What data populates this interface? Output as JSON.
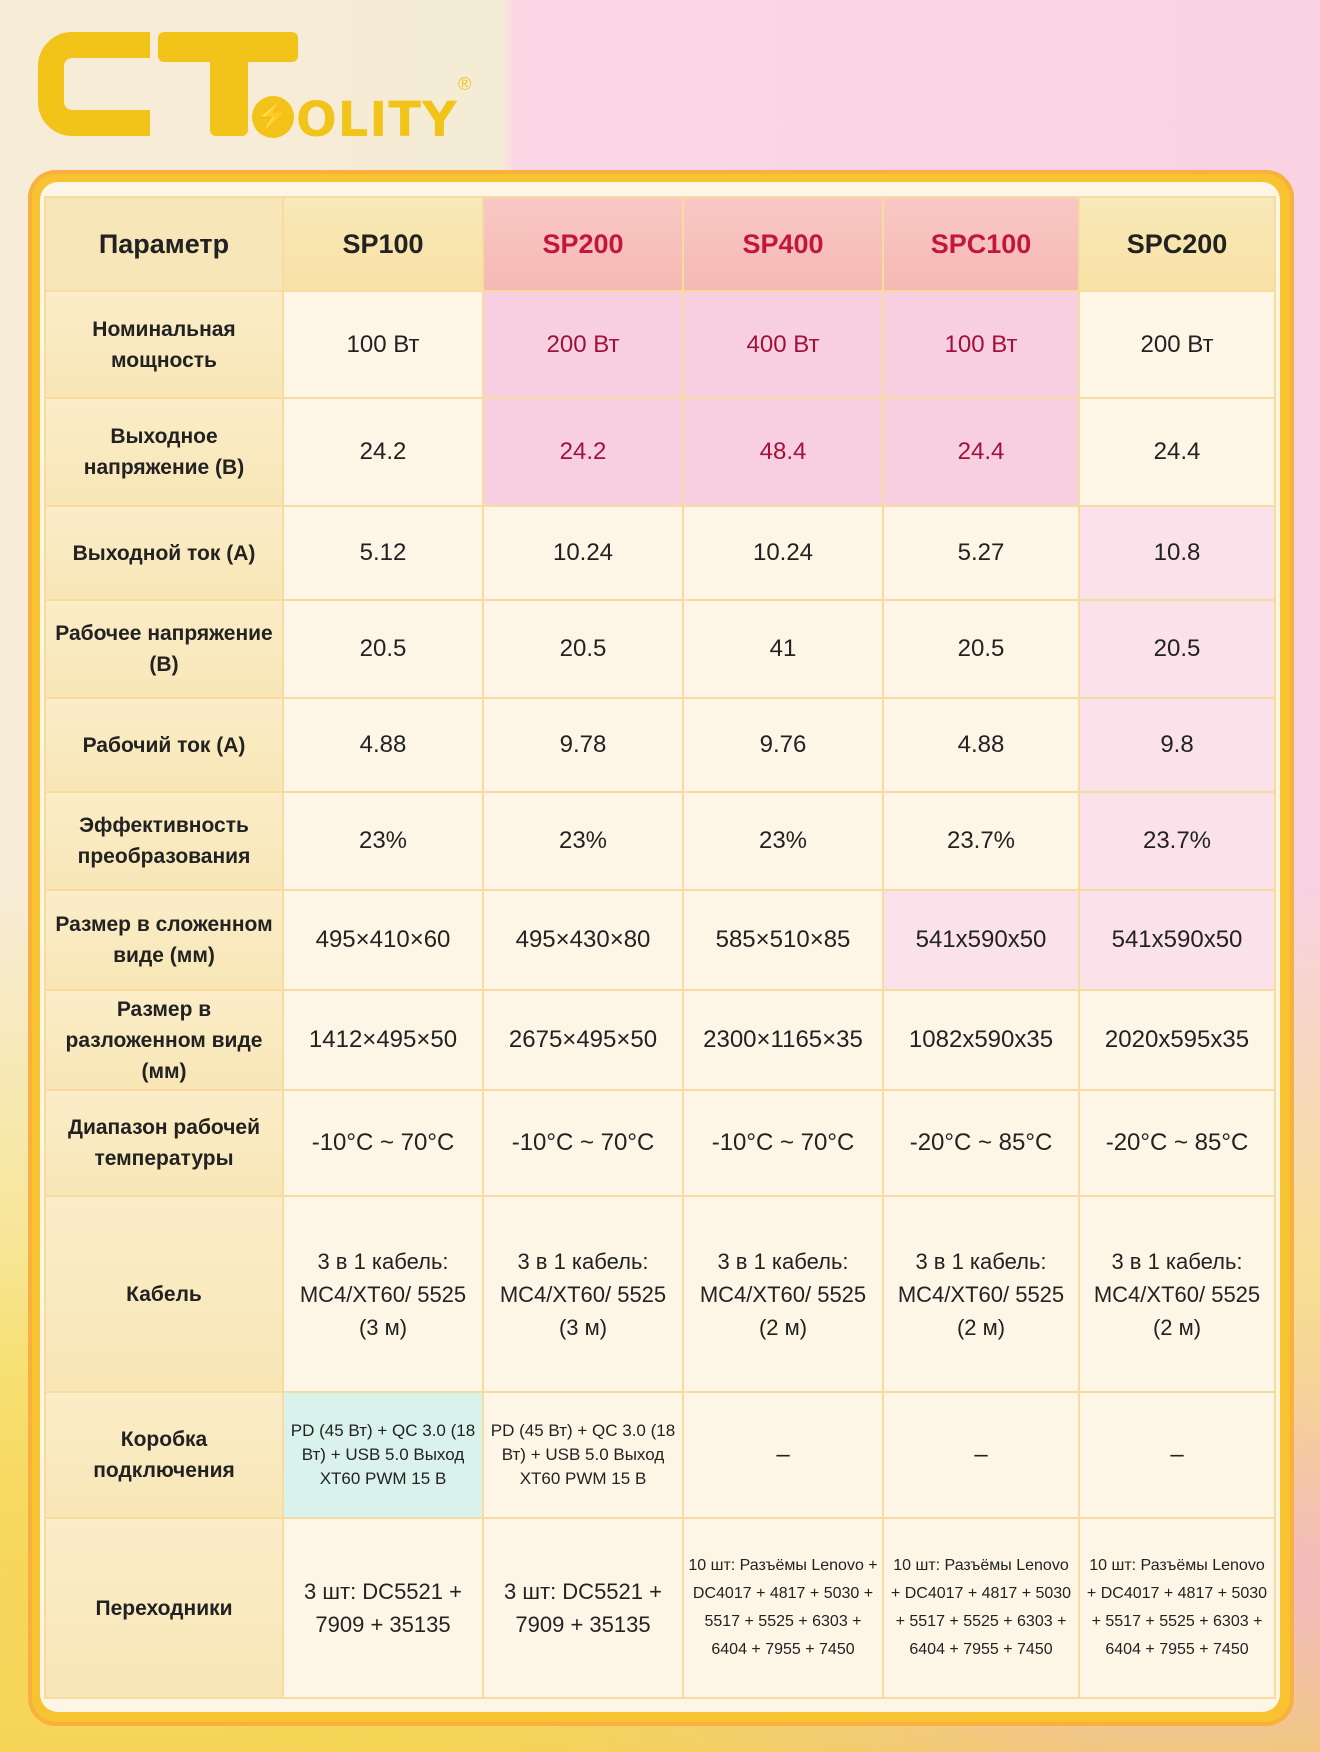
{
  "logo": {
    "text": "OLITY",
    "mark": "CT",
    "registered": "®"
  },
  "table": {
    "headers": [
      "Параметр",
      "SP100",
      "SP200",
      "SP400",
      "SPC100",
      "SPC200"
    ],
    "rows": [
      {
        "param": "Номинальная мощность",
        "values": [
          "100 Вт",
          "200 Вт",
          "400 Вт",
          "100 Вт",
          "200 Вт"
        ]
      },
      {
        "param": "Выходное напряжение (В)",
        "values": [
          "24.2",
          "24.2",
          "48.4",
          "24.4",
          "24.4"
        ]
      },
      {
        "param": "Выходной ток (А)",
        "values": [
          "5.12",
          "10.24",
          "10.24",
          "5.27",
          "10.8"
        ]
      },
      {
        "param": "Рабочее напряжение (В)",
        "values": [
          "20.5",
          "20.5",
          "41",
          "20.5",
          "20.5"
        ]
      },
      {
        "param": "Рабочий ток (А)",
        "values": [
          "4.88",
          "9.78",
          "9.76",
          "4.88",
          "9.8"
        ]
      },
      {
        "param": "Эффективность преобразования",
        "values": [
          "23%",
          "23%",
          "23%",
          "23.7%",
          "23.7%"
        ]
      },
      {
        "param": "Размер в сложенном виде (мм)",
        "values": [
          "495×410×60",
          "495×430×80",
          "585×510×85",
          "541x590x50",
          "541x590x50"
        ]
      },
      {
        "param": "Размер в разложенном виде (мм)",
        "values": [
          "1412×495×50",
          "2675×495×50",
          "2300×1165×35",
          "1082x590x35",
          "2020x595x35"
        ]
      },
      {
        "param": "Диапазон рабочей температуры",
        "values": [
          "-10°C ~ 70°C",
          "-10°C ~ 70°C",
          "-10°C ~ 70°C",
          "-20°C ~ 85°C",
          "-20°C ~ 85°C"
        ]
      },
      {
        "param": "Кабель",
        "values": [
          "3 в 1 кабель: MC4/XT60/ 5525 (3 м)",
          "3 в 1 кабель: MC4/XT60/ 5525 (3 м)",
          "3 в 1 кабель: MC4/XT60/ 5525 (2 м)",
          "3 в 1 кабель: MC4/XT60/ 5525 (2 м)",
          "3 в 1 кабель: MC4/XT60/ 5525 (2 м)"
        ]
      },
      {
        "param": "Коробка подключения",
        "values": [
          "PD (45 Вт) + QC 3.0 (18 Вт) + USB 5.0 Выход XT60 PWM 15 В",
          "PD (45 Вт) + QC 3.0 (18 Вт) + USB 5.0 Выход XT60 PWM 15 В",
          "–",
          "–",
          "–"
        ]
      },
      {
        "param": "Переходники",
        "values": [
          "3 шт: DC5521 + 7909 + 35135",
          "3 шт: DC5521 + 7909 + 35135",
          "10 шт: Разъёмы Lenovo + DC4017 + 4817 + 5030 + 5517 + 5525 + 6303 + 6404 + 7955 + 7450",
          "10 шт: Разъёмы Lenovo + DC4017 + 4817 + 5030 + 5517 + 5525 + 6303 + 6404 + 7955 + 7450",
          "10 шт: Разъёмы Lenovo + DC4017 + 4817 + 5030 + 5517 + 5525 + 6303 + 6404 + 7955 + 7450"
        ]
      }
    ]
  },
  "colors": {
    "brand": "#f2c318",
    "highlight_text": "#c2163e",
    "border": "#f6dca0"
  }
}
